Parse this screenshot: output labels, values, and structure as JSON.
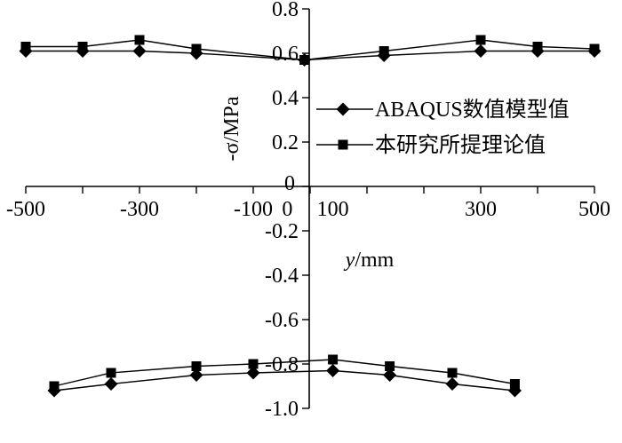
{
  "chart_data": {
    "type": "line",
    "title": "",
    "xlabel_var": "y",
    "xlabel_unit": "/mm",
    "ylabel": "-σ/MPa",
    "xlim": [
      -500,
      500
    ],
    "ylim": [
      -1.0,
      0.8
    ],
    "x_ticks": [
      -500,
      -400,
      -300,
      -200,
      -100,
      0,
      100,
      200,
      300,
      400,
      500
    ],
    "x_tick_labels": [
      "-500",
      "-300",
      "-100",
      "0",
      "100",
      "300",
      "500"
    ],
    "x_tick_label_values": [
      -500,
      -300,
      -100,
      -40,
      40,
      300,
      500
    ],
    "y_ticks": [
      0.8,
      0.6,
      0.4,
      0.2,
      0,
      -0.2,
      -0.4,
      -0.6,
      -0.8,
      -1.0
    ],
    "y_tick_labels": [
      "0.8",
      "0.6",
      "0.4",
      "0.2",
      "0",
      "-0.2",
      "-0.4",
      "-0.6",
      "-0.8",
      "-1.0"
    ],
    "grid": false,
    "legend_position": "middle-right",
    "series": [
      {
        "name": "ABAQUS数值模型值",
        "marker": "diamond",
        "color": "#000000",
        "groups": [
          {
            "x": [
              -500,
              -400,
              -300,
              -200,
              -10,
              130,
              300,
              400,
              500
            ],
            "y": [
              0.61,
              0.61,
              0.61,
              0.6,
              0.57,
              0.59,
              0.61,
              0.61,
              0.61
            ]
          },
          {
            "x": [
              -450,
              -350,
              -200,
              -100,
              40,
              140,
              250,
              360
            ],
            "y": [
              -0.92,
              -0.89,
              -0.85,
              -0.84,
              -0.83,
              -0.85,
              -0.89,
              -0.92
            ]
          }
        ]
      },
      {
        "name": "本研究所提理论值",
        "marker": "square",
        "color": "#000000",
        "groups": [
          {
            "x": [
              -500,
              -400,
              -300,
              -200,
              -10,
              130,
              300,
              400,
              500
            ],
            "y": [
              0.63,
              0.63,
              0.66,
              0.62,
              0.57,
              0.61,
              0.66,
              0.63,
              0.62
            ]
          },
          {
            "x": [
              -450,
              -350,
              -200,
              -100,
              40,
              140,
              250,
              360
            ],
            "y": [
              -0.9,
              -0.84,
              -0.81,
              -0.8,
              -0.78,
              -0.81,
              -0.84,
              -0.89
            ]
          }
        ]
      }
    ]
  }
}
